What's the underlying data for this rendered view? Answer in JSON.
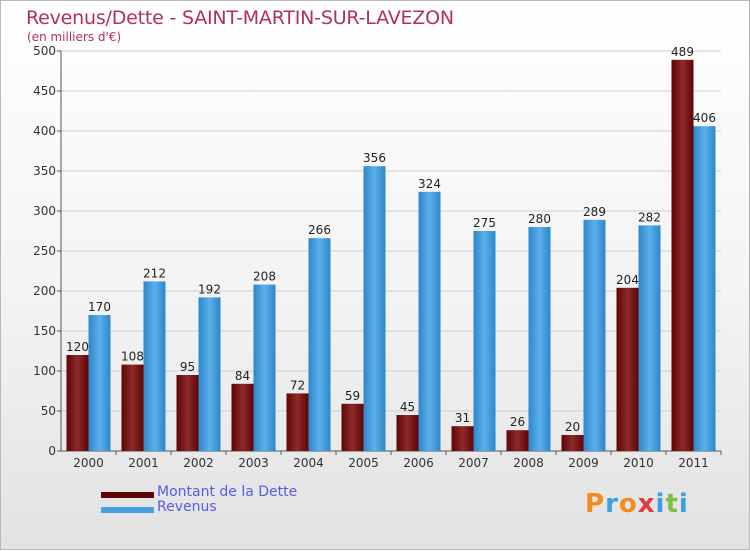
{
  "header": {
    "title": "Revenus/Dette - SAINT-MARTIN-SUR-LAVEZON",
    "subtitle": "(en milliers d'€)"
  },
  "legend": {
    "items": [
      {
        "label": "Montant de la Dette",
        "color": "#8b1a1a"
      },
      {
        "label": "Revenus",
        "color": "#4a9fe0"
      }
    ]
  },
  "logo": {
    "text": "Proxiti",
    "letters": [
      {
        "ch": "P",
        "color": "#f28c1e"
      },
      {
        "ch": "r",
        "color": "#3aa0e0"
      },
      {
        "ch": "o",
        "color": "#f28c1e"
      },
      {
        "ch": "x",
        "color": "#e23b3b"
      },
      {
        "ch": "i",
        "color": "#3aa0e0"
      },
      {
        "ch": "t",
        "color": "#7cc242"
      },
      {
        "ch": "i",
        "color": "#3aa0e0"
      }
    ]
  },
  "chart_data": {
    "type": "bar",
    "title": "Revenus/Dette - SAINT-MARTIN-SUR-LAVEZON",
    "subtitle": "(en milliers d'€)",
    "categories": [
      "2000",
      "2001",
      "2002",
      "2003",
      "2004",
      "2005",
      "2006",
      "2007",
      "2008",
      "2009",
      "2010",
      "2011"
    ],
    "series": [
      {
        "name": "Montant de la Dette",
        "color": "#8b1a1a",
        "values": [
          120,
          108,
          95,
          84,
          72,
          59,
          45,
          31,
          26,
          20,
          204,
          489
        ]
      },
      {
        "name": "Revenus",
        "color": "#4a9fe0",
        "values": [
          170,
          212,
          192,
          208,
          266,
          356,
          324,
          275,
          280,
          289,
          282,
          406
        ]
      }
    ],
    "ylim": [
      0,
      500
    ],
    "yticks": [
      0,
      50,
      100,
      150,
      200,
      250,
      300,
      350,
      400,
      450,
      500
    ],
    "grid": true,
    "legend_position": "bottom-left"
  }
}
